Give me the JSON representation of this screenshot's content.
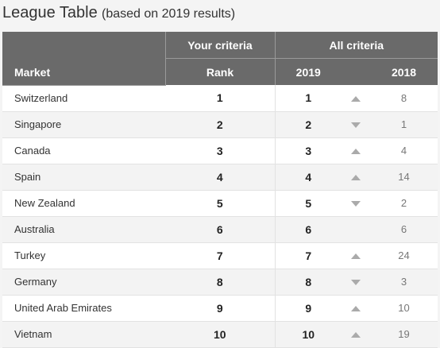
{
  "title": {
    "main": "League Table",
    "sub": "(based on 2019 results)"
  },
  "header": {
    "your_criteria": "Your criteria",
    "all_criteria": "All criteria",
    "market": "Market",
    "rank": "Rank",
    "y2019": "2019",
    "y2018": "2018"
  },
  "rows": [
    {
      "market": "Switzerland",
      "rank": "1",
      "r2019": "1",
      "trend": "up",
      "r2018": "8"
    },
    {
      "market": "Singapore",
      "rank": "2",
      "r2019": "2",
      "trend": "down",
      "r2018": "1"
    },
    {
      "market": "Canada",
      "rank": "3",
      "r2019": "3",
      "trend": "up",
      "r2018": "4"
    },
    {
      "market": "Spain",
      "rank": "4",
      "r2019": "4",
      "trend": "up",
      "r2018": "14"
    },
    {
      "market": "New Zealand",
      "rank": "5",
      "r2019": "5",
      "trend": "down",
      "r2018": "2"
    },
    {
      "market": "Australia",
      "rank": "6",
      "r2019": "6",
      "trend": "none",
      "r2018": "6"
    },
    {
      "market": "Turkey",
      "rank": "7",
      "r2019": "7",
      "trend": "up",
      "r2018": "24"
    },
    {
      "market": "Germany",
      "rank": "8",
      "r2019": "8",
      "trend": "down",
      "r2018": "3"
    },
    {
      "market": "United Arab Emirates",
      "rank": "9",
      "r2019": "9",
      "trend": "up",
      "r2018": "10"
    },
    {
      "market": "Vietnam",
      "rank": "10",
      "r2019": "10",
      "trend": "up",
      "r2018": "19"
    }
  ],
  "colors": {
    "header_bg": "#6a6a6a",
    "arrow": "#aaaaaa"
  }
}
